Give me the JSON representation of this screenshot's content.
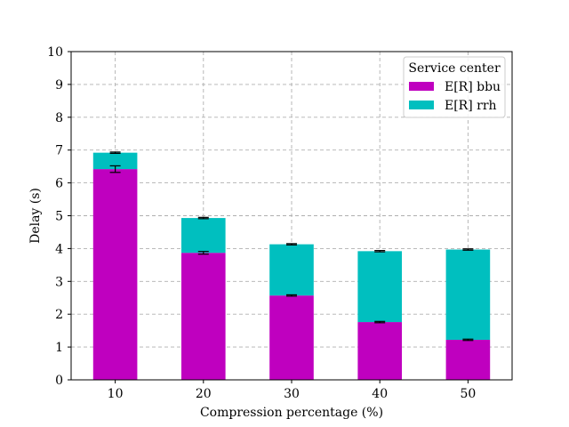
{
  "chart_data": {
    "type": "bar",
    "stacked": true,
    "categories": [
      "10",
      "20",
      "30",
      "40",
      "50"
    ],
    "series": [
      {
        "name": "E[R] bbu",
        "color": "#bf00bf",
        "values": [
          6.42,
          3.87,
          2.57,
          1.76,
          1.22
        ],
        "error": [
          0.1,
          0.04,
          0.02,
          0.02,
          0.02
        ]
      },
      {
        "name": "E[R] rrh",
        "color": "#00bfbf",
        "values": [
          0.5,
          1.06,
          1.56,
          2.16,
          2.75
        ],
        "error": [
          0.02,
          0.02,
          0.02,
          0.02,
          0.02
        ]
      }
    ],
    "xlabel": "Compression percentage (%)",
    "ylabel": "Delay (s)",
    "ylim": [
      0,
      10
    ],
    "yticks": [
      "0",
      "1",
      "2",
      "3",
      "4",
      "5",
      "6",
      "7",
      "8",
      "9",
      "10"
    ],
    "grid": true,
    "legend": {
      "title": "Service center",
      "position": "top-right"
    }
  }
}
